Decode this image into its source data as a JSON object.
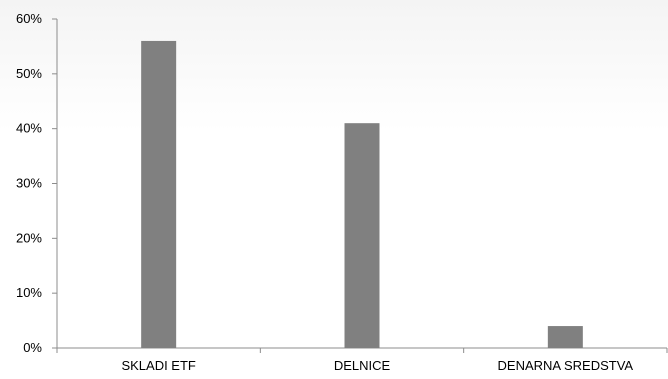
{
  "chart_data": {
    "type": "bar",
    "categories": [
      "SKLADI ETF",
      "DELNICE",
      "DENARNA SREDSTVA"
    ],
    "values": [
      56,
      41,
      4
    ],
    "unit": "%",
    "ylim": [
      0,
      60
    ],
    "yticks": [
      0,
      10,
      20,
      30,
      40,
      50,
      60
    ],
    "ytick_labels": [
      "0%",
      "10%",
      "20%",
      "30%",
      "40%",
      "50%",
      "60%"
    ],
    "grid": false,
    "legend": "none",
    "title": "",
    "xlabel": "",
    "ylabel": "",
    "colors": {
      "bar": "#808080",
      "axis": "#8c8c8c",
      "background_top": "#f4f4f4"
    }
  }
}
